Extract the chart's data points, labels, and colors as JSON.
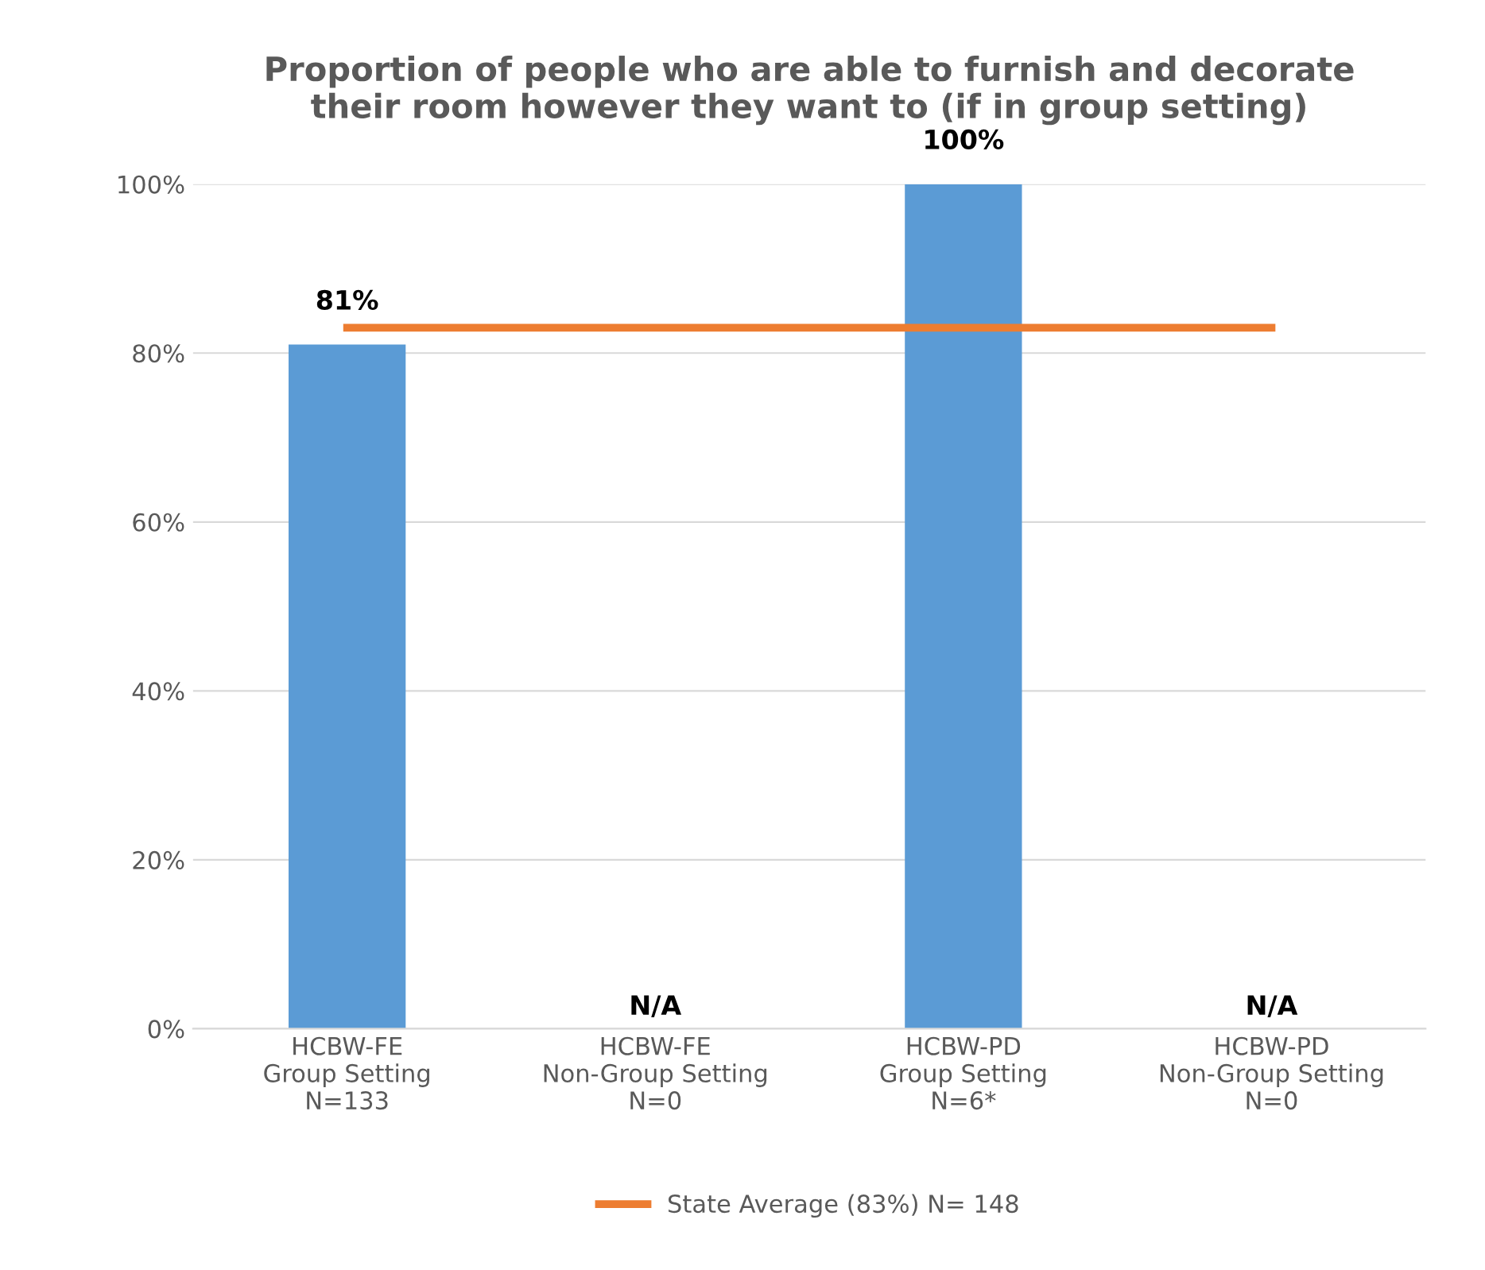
{
  "chart_data": {
    "type": "bar",
    "title": "Proportion of people who are able to furnish and decorate\ntheir room however they want to (if in group setting)",
    "categories": [
      "HCBW-FE\nGroup Setting\nN=133",
      "HCBW-FE\nNon-Group Setting\nN=0",
      "HCBW-PD\nGroup Setting\nN=6*",
      "HCBW-PD\nNon-Group Setting\nN=0"
    ],
    "series": [
      {
        "color": "#5b9bd5",
        "values": [
          81,
          null,
          100,
          null
        ],
        "value_labels": [
          "81%",
          "N/A",
          "100%",
          "N/A"
        ]
      },
      {
        "type": "line",
        "name": "State Average (83%) N= 148",
        "color": "#ed7d31",
        "values": [
          83,
          83,
          83,
          83
        ]
      }
    ],
    "ylim": [
      0,
      100
    ],
    "yticks": [
      {
        "value": 0,
        "label": "0%"
      },
      {
        "value": 20,
        "label": "20%"
      },
      {
        "value": 40,
        "label": "40%"
      },
      {
        "value": 60,
        "label": "60%"
      },
      {
        "value": 80,
        "label": "80%"
      },
      {
        "value": 100,
        "label": "100%"
      }
    ],
    "grid": "y",
    "legend": "bottom",
    "marker": "none"
  }
}
